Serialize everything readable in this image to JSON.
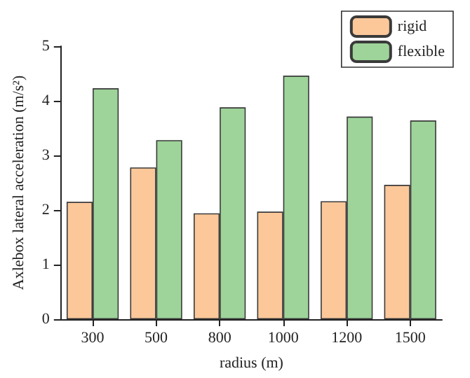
{
  "chart_data": {
    "type": "bar",
    "xlabel": "radius (m)",
    "ylabel": "Axlebox lateral acceleration (m/s²)",
    "categories": [
      "300",
      "500",
      "800",
      "1000",
      "1200",
      "1500"
    ],
    "series": [
      {
        "name": "rigid",
        "color": "#fcc89a",
        "values": [
          2.15,
          2.78,
          1.94,
          1.97,
          2.16,
          2.46
        ]
      },
      {
        "name": "flexible",
        "color": "#9ed49a",
        "values": [
          4.23,
          3.28,
          3.88,
          4.46,
          3.71,
          3.64
        ]
      }
    ],
    "ylim": [
      0,
      5
    ],
    "yticks": [
      0,
      1,
      2,
      3,
      4,
      5
    ],
    "grid": false,
    "legend": "top right"
  }
}
